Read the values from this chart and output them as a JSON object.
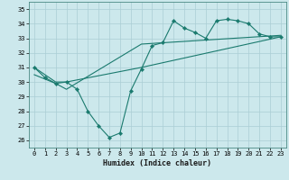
{
  "xlabel": "Humidex (Indice chaleur)",
  "xlim": [
    -0.5,
    23.5
  ],
  "ylim": [
    25.5,
    35.5
  ],
  "yticks": [
    26,
    27,
    28,
    29,
    30,
    31,
    32,
    33,
    34,
    35
  ],
  "xticks": [
    0,
    1,
    2,
    3,
    4,
    5,
    6,
    7,
    8,
    9,
    10,
    11,
    12,
    13,
    14,
    15,
    16,
    17,
    18,
    19,
    20,
    21,
    22,
    23
  ],
  "bg_color": "#cce8ec",
  "line_color": "#1a7a6e",
  "grid_color": "#aacdd4",
  "series1_x": [
    0,
    1,
    2,
    3,
    4,
    5,
    6,
    7,
    8,
    9,
    10,
    11,
    12,
    13,
    14,
    15,
    16,
    17,
    18,
    19,
    20,
    21,
    22,
    23
  ],
  "series1_y": [
    31.0,
    30.3,
    29.9,
    30.0,
    29.5,
    28.0,
    27.0,
    26.2,
    26.5,
    29.4,
    30.9,
    32.5,
    32.7,
    34.2,
    33.7,
    33.4,
    33.0,
    34.2,
    34.3,
    34.2,
    34.0,
    33.3,
    33.1,
    33.1
  ],
  "series2_x": [
    0,
    2,
    3,
    10,
    23
  ],
  "series2_y": [
    31.0,
    30.0,
    30.0,
    31.0,
    33.1
  ],
  "series3_x": [
    0,
    2,
    3,
    10,
    23
  ],
  "series3_y": [
    30.5,
    29.9,
    29.5,
    32.6,
    33.2
  ]
}
